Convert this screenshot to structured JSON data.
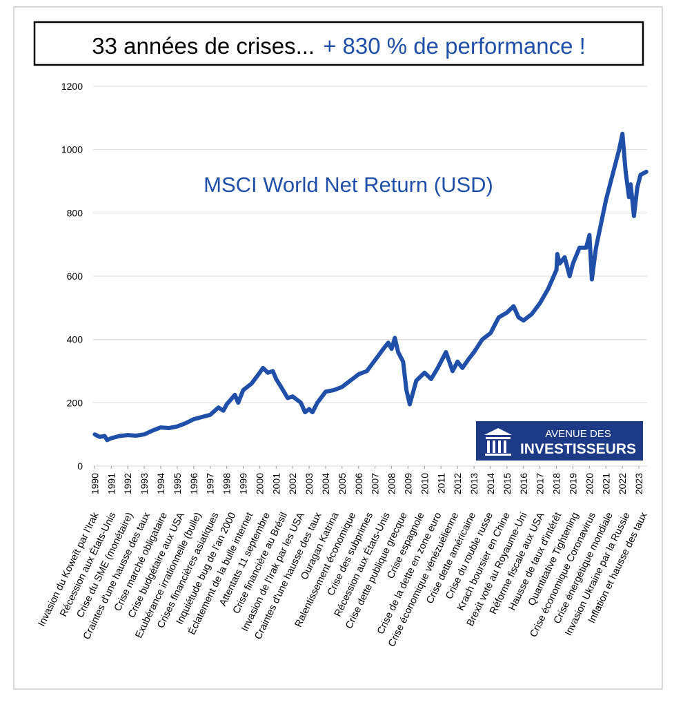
{
  "chart_data": {
    "type": "line",
    "title": {
      "part1": "33 années de crises...",
      "part2": "+ 830 % de performance !"
    },
    "logo": {
      "line1": "AVENUE DES",
      "line2": "INVESTISSEURS"
    },
    "series": [
      {
        "name": "MSCI World Net Return (USD)",
        "color": "#1f4fa8",
        "x": [
          1990.0,
          1990.3,
          1990.6,
          1990.75,
          1991.0,
          1991.5,
          1992.0,
          1992.5,
          1993.0,
          1993.5,
          1994.0,
          1994.5,
          1995.0,
          1995.5,
          1996.0,
          1996.5,
          1997.0,
          1997.5,
          1997.8,
          1998.0,
          1998.5,
          1998.7,
          1999.0,
          1999.5,
          2000.0,
          2000.2,
          2000.5,
          2000.8,
          2001.0,
          2001.3,
          2001.7,
          2002.0,
          2002.5,
          2002.75,
          2003.0,
          2003.2,
          2003.5,
          2004.0,
          2004.5,
          2005.0,
          2005.5,
          2006.0,
          2006.5,
          2007.0,
          2007.5,
          2007.8,
          2008.0,
          2008.2,
          2008.4,
          2008.7,
          2008.9,
          2009.1,
          2009.5,
          2010.0,
          2010.4,
          2010.8,
          2011.3,
          2011.7,
          2012.0,
          2012.3,
          2012.7,
          2013.0,
          2013.5,
          2014.0,
          2014.5,
          2015.0,
          2015.4,
          2015.7,
          2016.0,
          2016.5,
          2017.0,
          2017.5,
          2018.0,
          2018.05,
          2018.2,
          2018.5,
          2018.8,
          2019.0,
          2019.4,
          2019.8,
          2020.0,
          2020.15,
          2020.4,
          2020.8,
          2021.0,
          2021.5,
          2021.8,
          2022.0,
          2022.2,
          2022.4,
          2022.5,
          2022.7,
          2022.9,
          2023.1,
          2023.45
        ],
        "values": [
          100,
          92,
          95,
          82,
          88,
          95,
          98,
          96,
          100,
          112,
          122,
          120,
          125,
          135,
          148,
          155,
          162,
          185,
          175,
          195,
          225,
          200,
          240,
          260,
          295,
          310,
          295,
          300,
          275,
          250,
          215,
          220,
          200,
          170,
          180,
          170,
          200,
          235,
          240,
          250,
          270,
          290,
          300,
          335,
          370,
          390,
          370,
          405,
          360,
          330,
          240,
          195,
          270,
          295,
          275,
          310,
          360,
          300,
          330,
          310,
          340,
          360,
          400,
          420,
          470,
          485,
          505,
          470,
          460,
          480,
          515,
          560,
          620,
          670,
          640,
          660,
          600,
          640,
          690,
          690,
          730,
          590,
          690,
          790,
          840,
          940,
          1000,
          1050,
          930,
          850,
          890,
          790,
          880,
          920,
          930
        ]
      }
    ],
    "xlim": [
      1989.9,
      2023.5
    ],
    "xticks": [
      1990,
      1991,
      1992,
      1993,
      1994,
      1995,
      1996,
      1997,
      1998,
      1999,
      2000,
      2001,
      2002,
      2003,
      2004,
      2005,
      2006,
      2007,
      2008,
      2009,
      2010,
      2011,
      2012,
      2013,
      2014,
      2015,
      2016,
      2017,
      2018,
      2019,
      2020,
      2021,
      2022,
      2023
    ],
    "ylim": [
      0,
      1200
    ],
    "yticks": [
      0,
      200,
      400,
      600,
      800,
      1000,
      1200
    ],
    "grid": true,
    "annotations": [
      "Invasion du Koweït par l'Irak",
      "Récession aux États-Unis",
      "Crise du SME (monétaire)",
      "Craintes d'une hausse des taux",
      "Crise marché obligataire",
      "Crise budgétaire aux USA",
      "Exubérance irrationnelle (bulle)",
      "Crises financières asiatiques",
      "Inquiétude bug de l'an 2000",
      "Éclatement de la bulle internet",
      "Attentats 11 septembre",
      "Crise financière au Brésil",
      "Invasion de l'Irak par les USA",
      "Craintes d'une hausse des taux",
      "Ouragan Katrina",
      "Ralentissement économique",
      "Crise des subprimes",
      "Récession aux États-Unis",
      "Crise dette publique grecque",
      "Crise espagnole",
      "Crise de la dette en zone euro",
      "Crise économique vénézuélienne",
      "Crise dette américaine",
      "Crise du rouble russe",
      "Krach boursier en Chine",
      "Brexit voté au Royaume-Uni",
      "Réforme fiscale aux USA",
      "Hausse de taux d'intérêt",
      "Quantitative Tightening",
      "Crise économique Coronavirus",
      "Crise énergétique mondiale",
      "Invasion Ukraine par la Russie",
      "Inflation et hausse des taux"
    ]
  }
}
